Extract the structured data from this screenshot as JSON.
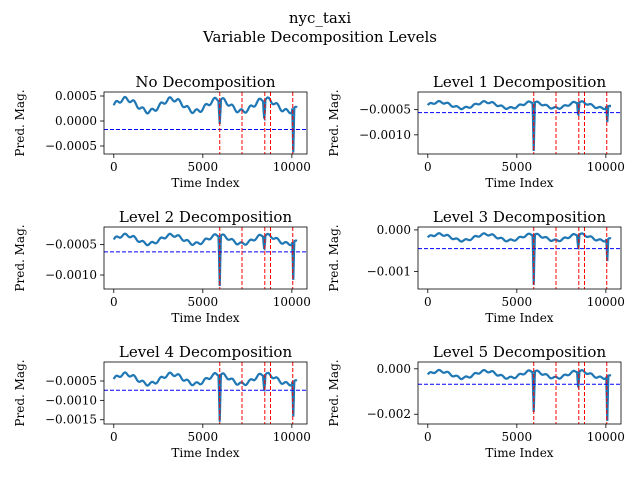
{
  "figure": {
    "title": "nyc_taxi",
    "subtitle": "Variable Decomposition Levels"
  },
  "colors": {
    "series": "#1f77b4",
    "threshold": "#0000ff",
    "anomaly": "#ff0000"
  },
  "chart_data": [
    {
      "type": "line",
      "title": "No Decomposition",
      "xlabel": "Time Index",
      "ylabel": "Pred. Mag.",
      "xlim": [
        -550,
        10850
      ],
      "ylim": [
        -0.00066,
        0.00058
      ],
      "xticks": [
        0,
        5000,
        10000
      ],
      "xtick_labels": [
        "0",
        "5000",
        "10000"
      ],
      "yticks": [
        -0.0005,
        0.0,
        0.0005
      ],
      "ytick_labels": [
        "−0.0005",
        "0.0000",
        "0.0005"
      ],
      "series": [
        {
          "band": [
            0.00015,
            0.00048
          ],
          "spikes": [
            [
              5950,
              -6e-05
            ],
            [
              8450,
              3e-05
            ],
            [
              10080,
              -0.00063
            ]
          ]
        }
      ],
      "threshold": -0.00017,
      "anomaly_x": [
        5950,
        7200,
        8480,
        8800,
        10050
      ]
    },
    {
      "type": "line",
      "title": "Level 1 Decomposition",
      "xlabel": "Time Index",
      "ylabel": "Pred. Mag.",
      "xlim": [
        -550,
        10850
      ],
      "ylim": [
        -0.00138,
        -0.00015
      ],
      "xticks": [
        0,
        5000,
        10000
      ],
      "xtick_labels": [
        "0",
        "5000",
        "10000"
      ],
      "yticks": [
        -0.0005,
        -0.001
      ],
      "ytick_labels": [
        "−0.0005",
        "−0.0010"
      ],
      "series": [
        {
          "band": [
            -0.00049,
            -0.00033
          ],
          "spikes": [
            [
              5950,
              -0.00132
            ],
            [
              8450,
              -0.00062
            ],
            [
              10080,
              -0.00075
            ]
          ]
        }
      ],
      "threshold": -0.00056,
      "anomaly_x": [
        5950,
        7200,
        8480,
        8800,
        10050
      ]
    },
    {
      "type": "line",
      "title": "Level 2 Decomposition",
      "xlabel": "Time Index",
      "ylabel": "Pred. Mag.",
      "xlim": [
        -550,
        10850
      ],
      "ylim": [
        -0.00123,
        -0.00021
      ],
      "xticks": [
        0,
        5000,
        10000
      ],
      "xtick_labels": [
        "0",
        "5000",
        "10000"
      ],
      "yticks": [
        -0.0005,
        -0.001
      ],
      "ytick_labels": [
        "−0.0005",
        "−0.0010"
      ],
      "series": [
        {
          "band": [
            -0.00051,
            -0.00032
          ],
          "spikes": [
            [
              5950,
              -0.00118
            ],
            [
              8450,
              -0.00058
            ],
            [
              10080,
              -0.00108
            ]
          ]
        }
      ],
      "threshold": -0.00062,
      "anomaly_x": [
        5950,
        7200,
        8480,
        8800,
        10050
      ]
    },
    {
      "type": "line",
      "title": "Level 3 Decomposition",
      "xlabel": "Time Index",
      "ylabel": "Pred. Mag.",
      "xlim": [
        -550,
        10850
      ],
      "ylim": [
        -0.00142,
        7e-05
      ],
      "xticks": [
        0,
        5000,
        10000
      ],
      "xtick_labels": [
        "0",
        "5000",
        "10000"
      ],
      "yticks": [
        0.0,
        -0.001
      ],
      "ytick_labels": [
        "0.000",
        "−0.001"
      ],
      "series": [
        {
          "band": [
            -0.00028,
            -8e-05
          ],
          "spikes": [
            [
              5950,
              -0.00132
            ],
            [
              8450,
              -0.00045
            ],
            [
              10080,
              -0.00075
            ]
          ]
        }
      ],
      "threshold": -0.00045,
      "anomaly_x": [
        5950,
        7200,
        8480,
        8800,
        10050
      ]
    },
    {
      "type": "line",
      "title": "Level 4 Decomposition",
      "xlabel": "Time Index",
      "ylabel": "Pred. Mag.",
      "xlim": [
        -550,
        10850
      ],
      "ylim": [
        -0.00161,
        -1e-05
      ],
      "xticks": [
        0,
        5000,
        10000
      ],
      "xtick_labels": [
        "0",
        "5000",
        "10000"
      ],
      "yticks": [
        -0.0005,
        -0.001,
        -0.0015
      ],
      "ytick_labels": [
        "−0.0005",
        "−0.0010",
        "−0.0015"
      ],
      "series": [
        {
          "band": [
            -0.00062,
            -0.00028
          ],
          "spikes": [
            [
              5950,
              -0.00155
            ],
            [
              8450,
              -0.00075
            ],
            [
              10080,
              -0.00142
            ]
          ]
        }
      ],
      "threshold": -0.00074,
      "anomaly_x": [
        5950,
        7200,
        8480,
        8800,
        10050
      ]
    },
    {
      "type": "line",
      "title": "Level 5 Decomposition",
      "xlabel": "Time Index",
      "ylabel": "Pred. Mag.",
      "xlim": [
        -550,
        10850
      ],
      "ylim": [
        -0.00243,
        0.0003
      ],
      "xticks": [
        0,
        5000,
        10000
      ],
      "xtick_labels": [
        "0",
        "5000",
        "10000"
      ],
      "yticks": [
        0.0,
        -0.002
      ],
      "ytick_labels": [
        "0.000",
        "−0.002"
      ],
      "series": [
        {
          "band": [
            -0.00045,
            -5e-05
          ],
          "spikes": [
            [
              5950,
              -0.0019
            ],
            [
              8450,
              -0.00085
            ],
            [
              10080,
              -0.0023
            ]
          ]
        }
      ],
      "threshold": -0.00068,
      "anomaly_x": [
        5950,
        7200,
        8480,
        8800,
        10050
      ]
    }
  ]
}
